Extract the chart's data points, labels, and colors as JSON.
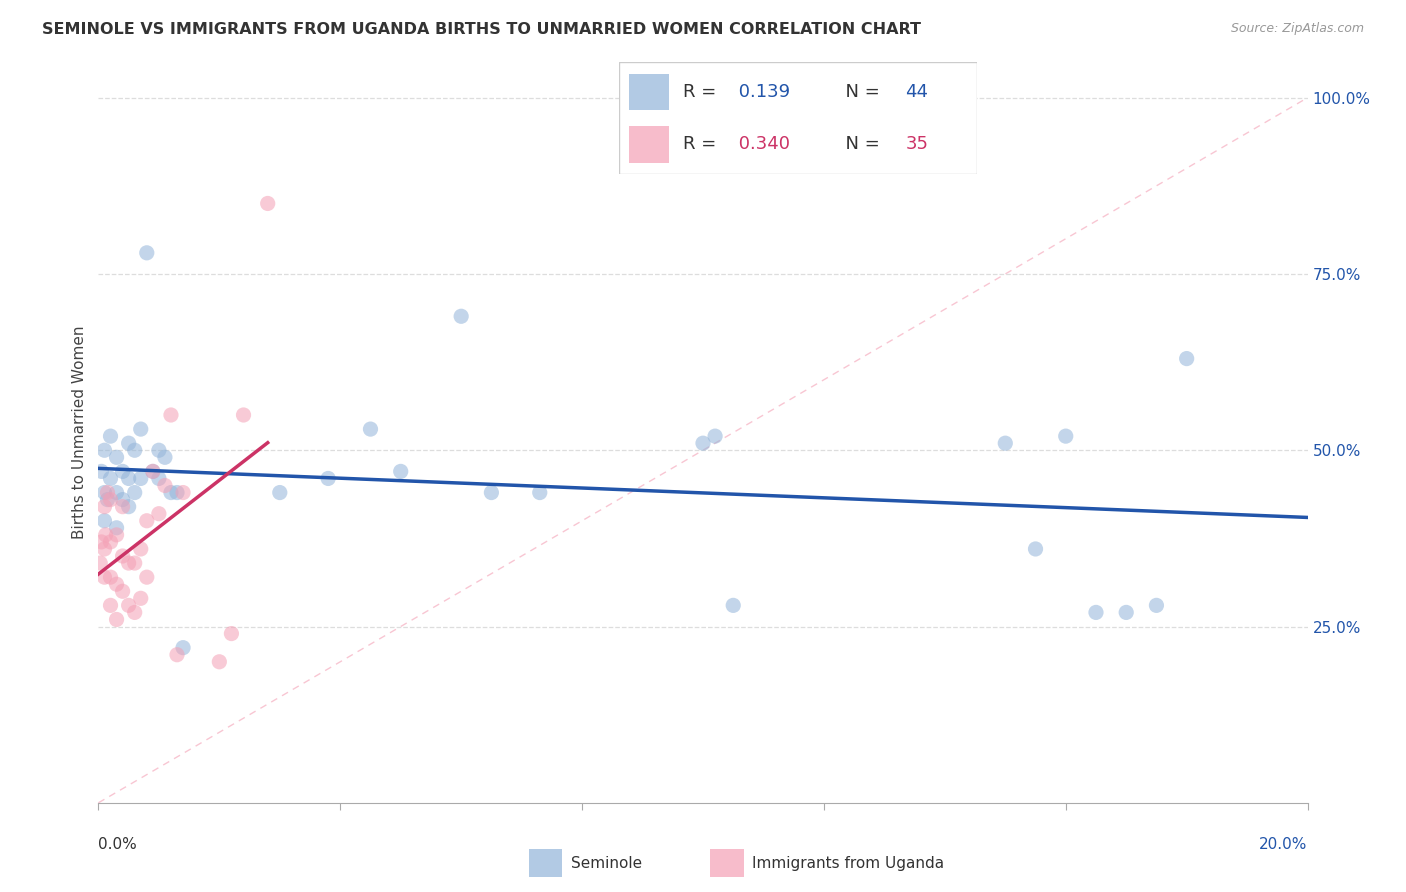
{
  "title": "SEMINOLE VS IMMIGRANTS FROM UGANDA BIRTHS TO UNMARRIED WOMEN CORRELATION CHART",
  "source": "Source: ZipAtlas.com",
  "ylabel": "Births to Unmarried Women",
  "R_seminole": 0.139,
  "N_seminole": 44,
  "R_uganda": 0.34,
  "N_uganda": 35,
  "seminole_color": "#92B4D9",
  "uganda_color": "#F4A0B5",
  "seminole_line_color": "#2255AA",
  "uganda_line_color": "#CC3366",
  "ref_line_color": "#F4A0B5",
  "xlim": [
    0.0,
    0.2
  ],
  "ylim": [
    0.0,
    1.05
  ],
  "background_color": "#FFFFFF",
  "grid_color": "#DDDDDD",
  "seminole_x": [
    0.0005,
    0.001,
    0.001,
    0.001,
    0.0015,
    0.002,
    0.002,
    0.003,
    0.003,
    0.003,
    0.004,
    0.004,
    0.005,
    0.005,
    0.005,
    0.006,
    0.006,
    0.007,
    0.007,
    0.008,
    0.009,
    0.01,
    0.01,
    0.011,
    0.012,
    0.013,
    0.014,
    0.03,
    0.038,
    0.045,
    0.05,
    0.06,
    0.065,
    0.073,
    0.1,
    0.102,
    0.105,
    0.15,
    0.155,
    0.16,
    0.165,
    0.17,
    0.175,
    0.18
  ],
  "seminole_y": [
    0.47,
    0.4,
    0.44,
    0.5,
    0.43,
    0.46,
    0.52,
    0.39,
    0.44,
    0.49,
    0.43,
    0.47,
    0.42,
    0.46,
    0.51,
    0.44,
    0.5,
    0.46,
    0.53,
    0.78,
    0.47,
    0.46,
    0.5,
    0.49,
    0.44,
    0.44,
    0.22,
    0.44,
    0.46,
    0.53,
    0.47,
    0.69,
    0.44,
    0.44,
    0.51,
    0.52,
    0.28,
    0.51,
    0.36,
    0.52,
    0.27,
    0.27,
    0.28,
    0.63
  ],
  "uganda_x": [
    0.0003,
    0.0005,
    0.001,
    0.001,
    0.001,
    0.0012,
    0.0015,
    0.002,
    0.002,
    0.002,
    0.002,
    0.003,
    0.003,
    0.003,
    0.004,
    0.004,
    0.004,
    0.005,
    0.005,
    0.006,
    0.006,
    0.007,
    0.007,
    0.008,
    0.008,
    0.009,
    0.01,
    0.011,
    0.012,
    0.013,
    0.014,
    0.02,
    0.022,
    0.024,
    0.028
  ],
  "uganda_y": [
    0.34,
    0.37,
    0.32,
    0.36,
    0.42,
    0.38,
    0.44,
    0.28,
    0.32,
    0.37,
    0.43,
    0.26,
    0.31,
    0.38,
    0.3,
    0.35,
    0.42,
    0.28,
    0.34,
    0.27,
    0.34,
    0.29,
    0.36,
    0.32,
    0.4,
    0.47,
    0.41,
    0.45,
    0.55,
    0.21,
    0.44,
    0.2,
    0.24,
    0.55,
    0.85
  ]
}
